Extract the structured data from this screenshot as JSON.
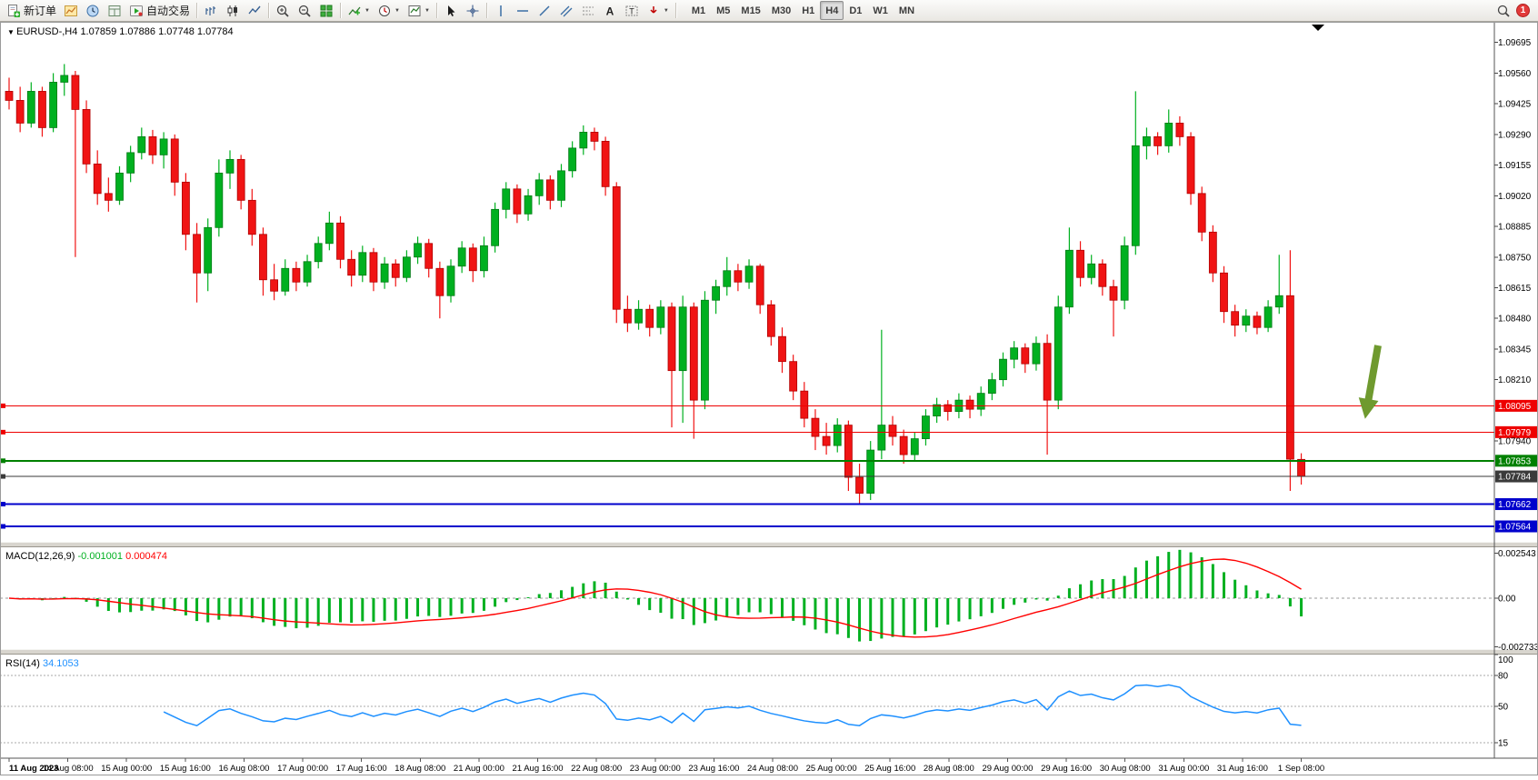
{
  "toolbar": {
    "new_order_label": "新订单",
    "auto_trading_label": "自动交易",
    "timeframes": [
      "M1",
      "M5",
      "M15",
      "M30",
      "H1",
      "H4",
      "D1",
      "W1",
      "MN"
    ],
    "active_timeframe": "H4",
    "notification_count": "1"
  },
  "chart_data": {
    "type": "candlestick",
    "title": "EURUSD-,H4",
    "ohlc_text": "1.07859 1.07886 1.07748 1.07784",
    "y_axis_labels": [
      "1.09695",
      "1.09560",
      "1.09425",
      "1.09290",
      "1.09155",
      "1.09020",
      "1.08885",
      "1.08750",
      "1.08615",
      "1.08480",
      "1.08345",
      "1.08210",
      "1.07940"
    ],
    "hlines": [
      {
        "price": 1.08095,
        "label": "1.08095",
        "color": "#ee0000",
        "width": 1
      },
      {
        "price": 1.07979,
        "label": "1.07979",
        "color": "#ee0000",
        "width": 1
      },
      {
        "price": 1.07853,
        "label": "1.07853",
        "color": "#008000",
        "width": 2
      },
      {
        "price": 1.07784,
        "label": "1.07784",
        "color": "#3a3a3a",
        "width": 1
      },
      {
        "price": 1.07662,
        "label": "1.07662",
        "color": "#0000cc",
        "width": 2
      },
      {
        "price": 1.07564,
        "label": "1.07564",
        "color": "#0000cc",
        "width": 2
      }
    ],
    "x_labels": [
      "11 Aug 2023",
      "14 Aug 08:00",
      "15 Aug 00:00",
      "15 Aug 16:00",
      "16 Aug 08:00",
      "17 Aug 00:00",
      "17 Aug 16:00",
      "18 Aug 08:00",
      "21 Aug 00:00",
      "21 Aug 16:00",
      "22 Aug 08:00",
      "23 Aug 00:00",
      "23 Aug 16:00",
      "24 Aug 08:00",
      "25 Aug 00:00",
      "25 Aug 16:00",
      "28 Aug 08:00",
      "29 Aug 00:00",
      "29 Aug 16:00",
      "30 Aug 08:00",
      "31 Aug 00:00",
      "31 Aug 16:00",
      "1 Sep 08:00"
    ],
    "candles": [
      [
        1.0948,
        1.0954,
        1.094,
        1.0944
      ],
      [
        1.0944,
        1.095,
        1.093,
        1.0934
      ],
      [
        1.0934,
        1.0952,
        1.0932,
        1.0948
      ],
      [
        1.0948,
        1.095,
        1.0928,
        1.0932
      ],
      [
        1.0932,
        1.0956,
        1.093,
        1.0952
      ],
      [
        1.0952,
        1.096,
        1.0946,
        1.0955
      ],
      [
        1.0955,
        1.0957,
        1.0875,
        1.094
      ],
      [
        1.094,
        1.0944,
        1.0912,
        1.0916
      ],
      [
        1.0916,
        1.0922,
        1.0898,
        1.0903
      ],
      [
        1.0903,
        1.091,
        1.0895,
        1.09
      ],
      [
        1.09,
        1.0915,
        1.0898,
        1.0912
      ],
      [
        1.0912,
        1.0924,
        1.0908,
        1.0921
      ],
      [
        1.0921,
        1.0932,
        1.0918,
        1.0928
      ],
      [
        1.0928,
        1.0931,
        1.0916,
        1.092
      ],
      [
        1.092,
        1.093,
        1.0914,
        1.0927
      ],
      [
        1.0927,
        1.0929,
        1.0902,
        1.0908
      ],
      [
        1.0908,
        1.0912,
        1.0878,
        1.0885
      ],
      [
        1.0885,
        1.089,
        1.0855,
        1.0868
      ],
      [
        1.0868,
        1.0892,
        1.086,
        1.0888
      ],
      [
        1.0888,
        1.0918,
        1.0884,
        1.0912
      ],
      [
        1.0912,
        1.0922,
        1.0905,
        1.0918
      ],
      [
        1.0918,
        1.092,
        1.0896,
        1.09
      ],
      [
        1.09,
        1.0905,
        1.088,
        1.0885
      ],
      [
        1.0885,
        1.0888,
        1.0858,
        1.0865
      ],
      [
        1.0865,
        1.0872,
        1.0856,
        1.086
      ],
      [
        1.086,
        1.0874,
        1.0858,
        1.087
      ],
      [
        1.087,
        1.0873,
        1.086,
        1.0864
      ],
      [
        1.0864,
        1.0876,
        1.0862,
        1.0873
      ],
      [
        1.0873,
        1.0884,
        1.087,
        1.0881
      ],
      [
        1.0881,
        1.0895,
        1.0878,
        1.089
      ],
      [
        1.089,
        1.0893,
        1.087,
        1.0874
      ],
      [
        1.0874,
        1.0878,
        1.0862,
        1.0867
      ],
      [
        1.0867,
        1.088,
        1.0864,
        1.0877
      ],
      [
        1.0877,
        1.0879,
        1.086,
        1.0864
      ],
      [
        1.0864,
        1.0875,
        1.0861,
        1.0872
      ],
      [
        1.0872,
        1.0874,
        1.0862,
        1.0866
      ],
      [
        1.0866,
        1.0878,
        1.0864,
        1.0875
      ],
      [
        1.0875,
        1.0884,
        1.0872,
        1.0881
      ],
      [
        1.0881,
        1.0883,
        1.0866,
        1.087
      ],
      [
        1.087,
        1.0873,
        1.0848,
        1.0858
      ],
      [
        1.0858,
        1.0874,
        1.0855,
        1.0871
      ],
      [
        1.0871,
        1.0882,
        1.0868,
        1.0879
      ],
      [
        1.0879,
        1.0881,
        1.0864,
        1.0869
      ],
      [
        1.0869,
        1.0884,
        1.0866,
        1.088
      ],
      [
        1.088,
        1.0899,
        1.0877,
        1.0896
      ],
      [
        1.0896,
        1.0908,
        1.0892,
        1.0905
      ],
      [
        1.0905,
        1.0907,
        1.089,
        1.0894
      ],
      [
        1.0894,
        1.0905,
        1.0891,
        1.0902
      ],
      [
        1.0902,
        1.0912,
        1.0898,
        1.0909
      ],
      [
        1.0909,
        1.0911,
        1.0896,
        1.09
      ],
      [
        1.09,
        1.0916,
        1.0897,
        1.0913
      ],
      [
        1.0913,
        1.0926,
        1.091,
        1.0923
      ],
      [
        1.0923,
        1.0933,
        1.092,
        1.093
      ],
      [
        1.093,
        1.0932,
        1.0922,
        1.0926
      ],
      [
        1.0926,
        1.0928,
        1.0902,
        1.0906
      ],
      [
        1.0906,
        1.0908,
        1.0846,
        1.0852
      ],
      [
        1.0852,
        1.0858,
        1.0842,
        1.0846
      ],
      [
        1.0846,
        1.0856,
        1.0843,
        1.0852
      ],
      [
        1.0852,
        1.0854,
        1.084,
        1.0844
      ],
      [
        1.0844,
        1.0856,
        1.0841,
        1.0853
      ],
      [
        1.0853,
        1.0855,
        1.08,
        1.0825
      ],
      [
        1.0825,
        1.0858,
        1.0802,
        1.0853
      ],
      [
        1.0853,
        1.0855,
        1.0795,
        1.0812
      ],
      [
        1.0812,
        1.086,
        1.0808,
        1.0856
      ],
      [
        1.0856,
        1.0865,
        1.085,
        1.0862
      ],
      [
        1.0862,
        1.0875,
        1.0858,
        1.0869
      ],
      [
        1.0869,
        1.0872,
        1.086,
        1.0864
      ],
      [
        1.0864,
        1.0874,
        1.0861,
        1.0871
      ],
      [
        1.0871,
        1.0872,
        1.085,
        1.0854
      ],
      [
        1.0854,
        1.0856,
        1.0836,
        1.084
      ],
      [
        1.084,
        1.0844,
        1.0824,
        1.0829
      ],
      [
        1.0829,
        1.0832,
        1.0812,
        1.0816
      ],
      [
        1.0816,
        1.082,
        1.08,
        1.0804
      ],
      [
        1.0804,
        1.0808,
        1.079,
        1.0796
      ],
      [
        1.0796,
        1.0802,
        1.0788,
        1.0792
      ],
      [
        1.0792,
        1.0804,
        1.0789,
        1.0801
      ],
      [
        1.0801,
        1.0803,
        1.0772,
        1.0778
      ],
      [
        1.0778,
        1.0784,
        1.0766,
        1.0771
      ],
      [
        1.0771,
        1.0794,
        1.0768,
        1.079
      ],
      [
        1.079,
        1.0843,
        1.0786,
        1.0801
      ],
      [
        1.0801,
        1.0805,
        1.0792,
        1.0796
      ],
      [
        1.0796,
        1.0799,
        1.0784,
        1.0788
      ],
      [
        1.0788,
        1.0798,
        1.0785,
        1.0795
      ],
      [
        1.0795,
        1.0808,
        1.0792,
        1.0805
      ],
      [
        1.0805,
        1.0813,
        1.0802,
        1.081
      ],
      [
        1.081,
        1.0812,
        1.0803,
        1.0807
      ],
      [
        1.0807,
        1.0815,
        1.0804,
        1.0812
      ],
      [
        1.0812,
        1.0814,
        1.0804,
        1.0808
      ],
      [
        1.0808,
        1.0818,
        1.0805,
        1.0815
      ],
      [
        1.0815,
        1.0824,
        1.0812,
        1.0821
      ],
      [
        1.0821,
        1.0833,
        1.0818,
        1.083
      ],
      [
        1.083,
        1.0838,
        1.0826,
        1.0835
      ],
      [
        1.0835,
        1.0837,
        1.0824,
        1.0828
      ],
      [
        1.0828,
        1.084,
        1.0825,
        1.0837
      ],
      [
        1.0837,
        1.0841,
        1.0788,
        1.0812
      ],
      [
        1.0812,
        1.0858,
        1.0808,
        1.0853
      ],
      [
        1.0853,
        1.0888,
        1.085,
        1.0878
      ],
      [
        1.0878,
        1.0882,
        1.0862,
        1.0866
      ],
      [
        1.0866,
        1.0876,
        1.0863,
        1.0872
      ],
      [
        1.0872,
        1.0874,
        1.0858,
        1.0862
      ],
      [
        1.0862,
        1.0865,
        1.084,
        1.0856
      ],
      [
        1.0856,
        1.0884,
        1.0852,
        1.088
      ],
      [
        1.088,
        1.0948,
        1.0876,
        1.0924
      ],
      [
        1.0924,
        1.0932,
        1.0918,
        1.0928
      ],
      [
        1.0928,
        1.093,
        1.092,
        1.0924
      ],
      [
        1.0924,
        1.094,
        1.0921,
        1.0934
      ],
      [
        1.0934,
        1.0937,
        1.0924,
        1.0928
      ],
      [
        1.0928,
        1.093,
        1.0898,
        1.0903
      ],
      [
        1.0903,
        1.0906,
        1.0882,
        1.0886
      ],
      [
        1.0886,
        1.0889,
        1.0864,
        1.0868
      ],
      [
        1.0868,
        1.0871,
        1.0846,
        1.0851
      ],
      [
        1.0851,
        1.0854,
        1.084,
        1.0845
      ],
      [
        1.0845,
        1.0852,
        1.0842,
        1.0849
      ],
      [
        1.0849,
        1.0851,
        1.0841,
        1.0844
      ],
      [
        1.0844,
        1.0856,
        1.0842,
        1.0853
      ],
      [
        1.0853,
        1.0876,
        1.085,
        1.0858
      ],
      [
        1.0858,
        1.0878,
        1.0772,
        1.0786
      ],
      [
        1.07859,
        1.07886,
        1.07748,
        1.07784
      ]
    ],
    "indicators": {
      "macd": {
        "name": "MACD(12,26,9)",
        "main_value": "-0.001001",
        "signal_value": "0.000474",
        "fast": 12,
        "slow": 26,
        "signal": 9,
        "axis_labels": [
          "0.002543",
          "0.00",
          "-0.002733"
        ]
      },
      "rsi": {
        "name": "RSI(14)",
        "value": "34.1053",
        "period": 14,
        "axis_labels": [
          "100",
          "80",
          "50",
          "15"
        ],
        "levels": [
          80,
          50,
          15
        ]
      }
    },
    "colors": {
      "up": "#00b020",
      "up_border": "#007a14",
      "down": "#f01414",
      "down_border": "#b00000",
      "macd_hist": "#00b020",
      "macd_signal": "#ff0000",
      "rsi_line": "#1e90ff",
      "arrow": "#6f9a2f"
    },
    "annotations": {
      "arrow": {
        "type": "down-arrow",
        "color": "#6f9a2f"
      }
    }
  }
}
